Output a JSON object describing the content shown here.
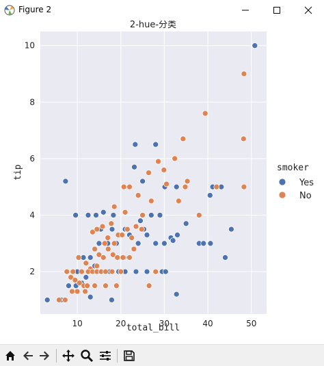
{
  "window": {
    "title": "Figure 2",
    "icon": "matplotlib-icon",
    "controls": [
      "minimize-icon",
      "maximize-icon",
      "close-icon"
    ]
  },
  "toolbar": {
    "buttons": [
      "home-icon",
      "back-arrow-icon",
      "forward-arrow-icon",
      "pan-icon",
      "zoom-icon",
      "subplots-config-icon",
      "save-icon"
    ]
  },
  "colors": {
    "axes_bg": "#eaeaf2",
    "grid": "#ffffff",
    "yes": "#4c72b0",
    "no": "#dd8452"
  },
  "chart_data": {
    "type": "scatter",
    "title": "2-hue-分类",
    "xlabel": "total_bill",
    "ylabel": "tip",
    "xlim": [
      1.5,
      53.5
    ],
    "ylim": [
      0.5,
      10.5
    ],
    "xticks": [
      10,
      20,
      30,
      40,
      50
    ],
    "yticks": [
      2,
      4,
      6,
      8,
      10
    ],
    "grid": true,
    "legend": {
      "title": "smoker",
      "placement": "right"
    },
    "series": [
      {
        "name": "Yes",
        "points": [
          [
            50.8,
            10.0
          ],
          [
            23.3,
            6.5
          ],
          [
            28.0,
            6.5
          ],
          [
            23.1,
            5.7
          ],
          [
            7.3,
            5.2
          ],
          [
            25.0,
            5.2
          ],
          [
            30.1,
            5.0
          ],
          [
            32.8,
            5.0
          ],
          [
            41.1,
            5.0
          ],
          [
            43.1,
            5.0
          ],
          [
            40.5,
            4.7
          ],
          [
            16.0,
            4.1
          ],
          [
            9.6,
            4.0
          ],
          [
            12.5,
            4.0
          ],
          [
            14.3,
            4.0
          ],
          [
            18.3,
            4.0
          ],
          [
            27.0,
            4.0
          ],
          [
            29.0,
            4.0
          ],
          [
            24.5,
            3.8
          ],
          [
            35.0,
            3.7
          ],
          [
            15.4,
            3.5
          ],
          [
            18.0,
            3.5
          ],
          [
            21.0,
            3.5
          ],
          [
            25.3,
            3.5
          ],
          [
            45.4,
            3.5
          ],
          [
            22.0,
            3.3
          ],
          [
            26.0,
            3.3
          ],
          [
            15.0,
            3.0
          ],
          [
            17.0,
            3.0
          ],
          [
            19.0,
            3.0
          ],
          [
            24.0,
            3.0
          ],
          [
            28.0,
            3.0
          ],
          [
            30.0,
            3.0
          ],
          [
            31.5,
            3.2
          ],
          [
            32.0,
            3.1
          ],
          [
            33.0,
            3.3
          ],
          [
            38.0,
            3.0
          ],
          [
            39.0,
            3.0
          ],
          [
            40.6,
            3.0
          ],
          [
            20.7,
            2.5
          ],
          [
            13.0,
            2.5
          ],
          [
            11.4,
            2.5
          ],
          [
            14.0,
            2.2
          ],
          [
            44.0,
            2.5
          ],
          [
            10.0,
            2.0
          ],
          [
            12.6,
            2.0
          ],
          [
            13.4,
            2.0
          ],
          [
            15.5,
            2.0
          ],
          [
            17.5,
            2.0
          ],
          [
            19.5,
            2.0
          ],
          [
            21.0,
            2.0
          ],
          [
            23.5,
            2.0
          ],
          [
            26.0,
            2.0
          ],
          [
            28.0,
            2.0
          ],
          [
            29.5,
            2.0
          ],
          [
            30.3,
            2.0
          ],
          [
            12.0,
            1.8
          ],
          [
            9.7,
            1.5
          ],
          [
            8.0,
            1.5
          ],
          [
            11.0,
            1.6
          ],
          [
            13.0,
            1.1
          ],
          [
            17.9,
            1.0
          ],
          [
            6.3,
            1.0
          ],
          [
            3.1,
            1.0
          ],
          [
            32.8,
            1.2
          ]
        ]
      },
      {
        "name": "No",
        "points": [
          [
            48.3,
            9.0
          ],
          [
            39.4,
            7.6
          ],
          [
            48.2,
            6.7
          ],
          [
            34.3,
            6.7
          ],
          [
            32.4,
            6.0
          ],
          [
            28.6,
            5.9
          ],
          [
            26.4,
            5.5
          ],
          [
            29.9,
            5.6
          ],
          [
            30.5,
            5.1
          ],
          [
            35.3,
            5.2
          ],
          [
            34.8,
            5.0
          ],
          [
            20.7,
            5.0
          ],
          [
            22.0,
            5.0
          ],
          [
            42.0,
            5.0
          ],
          [
            48.3,
            5.0
          ],
          [
            33.3,
            4.5
          ],
          [
            27.0,
            4.5
          ],
          [
            24.0,
            4.7
          ],
          [
            18.5,
            4.3
          ],
          [
            21.0,
            4.1
          ],
          [
            25.0,
            4.0
          ],
          [
            38.0,
            4.0
          ],
          [
            13.5,
            3.4
          ],
          [
            14.5,
            3.5
          ],
          [
            15.8,
            3.6
          ],
          [
            17.0,
            3.2
          ],
          [
            17.8,
            3.7
          ],
          [
            18.5,
            3.0
          ],
          [
            19.4,
            3.3
          ],
          [
            20.3,
            3.3
          ],
          [
            21.5,
            3.5
          ],
          [
            22.5,
            3.2
          ],
          [
            23.5,
            3.6
          ],
          [
            24.8,
            3.5
          ],
          [
            16.3,
            3.0
          ],
          [
            17.1,
            2.8
          ],
          [
            18.2,
            2.6
          ],
          [
            19.2,
            2.5
          ],
          [
            20.5,
            2.5
          ],
          [
            22.0,
            2.5
          ],
          [
            23.0,
            2.8
          ],
          [
            14.0,
            2.8
          ],
          [
            15.0,
            2.6
          ],
          [
            16.0,
            2.5
          ],
          [
            10.3,
            2.5
          ],
          [
            12.0,
            2.3
          ],
          [
            13.0,
            2.1
          ],
          [
            14.5,
            2.2
          ],
          [
            9.0,
            2.0
          ],
          [
            11.0,
            2.0
          ],
          [
            12.5,
            2.0
          ],
          [
            13.5,
            2.0
          ],
          [
            14.5,
            2.0
          ],
          [
            15.5,
            2.0
          ],
          [
            16.5,
            2.0
          ],
          [
            18.0,
            2.0
          ],
          [
            20.0,
            2.0
          ],
          [
            7.6,
            2.0
          ],
          [
            8.5,
            1.8
          ],
          [
            9.5,
            1.7
          ],
          [
            10.5,
            1.6
          ],
          [
            11.5,
            1.5
          ],
          [
            12.3,
            1.5
          ],
          [
            8.8,
            1.3
          ],
          [
            10.0,
            1.3
          ],
          [
            11.8,
            1.3
          ],
          [
            14.0,
            1.5
          ],
          [
            16.5,
            1.5
          ],
          [
            19.0,
            1.5
          ],
          [
            26.5,
            1.5
          ],
          [
            28.0,
            2.0
          ],
          [
            7.2,
            1.0
          ],
          [
            5.8,
            1.0
          ]
        ]
      }
    ]
  }
}
